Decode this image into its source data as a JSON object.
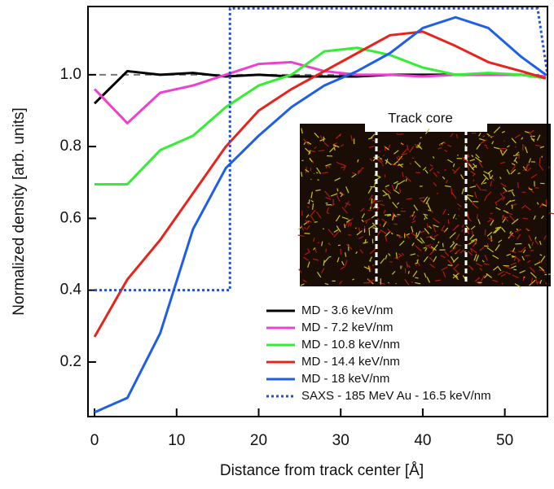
{
  "chart_data": {
    "type": "line",
    "xlabel": "Distance from track center [Å]",
    "ylabel": "Normalized density [arb. units]",
    "annotation": "Track core",
    "x": [
      0,
      4,
      8,
      12,
      16,
      20,
      24,
      28,
      32,
      36,
      40,
      44,
      48,
      52,
      55
    ],
    "series": [
      {
        "name": "MD - 3.6 keV/nm",
        "color": "#000000",
        "style": "solid",
        "values": [
          0.92,
          1.01,
          1.0,
          1.005,
          0.995,
          1.0,
          0.995,
          0.995,
          0.995,
          1.0,
          1.0,
          1.0,
          1.0,
          1.0,
          0.995
        ]
      },
      {
        "name": "MD - 7.2 keV/nm",
        "color": "#ee3fd0",
        "style": "solid",
        "values": [
          0.96,
          0.865,
          0.95,
          0.97,
          1.0,
          1.03,
          1.035,
          1.01,
          1.0,
          1.0,
          0.995,
          1.0,
          1.0,
          1.0,
          0.995
        ]
      },
      {
        "name": "MD - 10.8 keV/nm",
        "color": "#33ee33",
        "style": "solid",
        "values": [
          0.695,
          0.695,
          0.79,
          0.83,
          0.91,
          0.97,
          1.0,
          1.065,
          1.075,
          1.055,
          1.02,
          1.0,
          1.005,
          1.0,
          0.99
        ]
      },
      {
        "name": "MD - 14.4 keV/nm",
        "color": "#e8231c",
        "style": "solid",
        "values": [
          0.27,
          0.43,
          0.54,
          0.67,
          0.8,
          0.9,
          0.96,
          1.01,
          1.06,
          1.11,
          1.12,
          1.08,
          1.035,
          1.01,
          0.99
        ]
      },
      {
        "name": "MD - 18 keV/nm",
        "color": "#1f5ee6",
        "style": "solid",
        "values": [
          0.06,
          0.1,
          0.28,
          0.57,
          0.74,
          0.83,
          0.91,
          0.97,
          1.01,
          1.06,
          1.13,
          1.16,
          1.13,
          1.05,
          1.0
        ]
      },
      {
        "name": "SAXS - 185 MeV Au - 16.5 keV/nm",
        "color": "#1f4fe0",
        "style": "dotted",
        "x": [
          0,
          16.5,
          16.5,
          54,
          55.2
        ],
        "values": [
          0.4,
          0.4,
          1.185,
          1.185,
          1.0
        ]
      }
    ],
    "reference_line": 1.0,
    "xlim": [
      -0.8,
      55.2
    ],
    "ylim": [
      0.048,
      1.19
    ],
    "xticks": [
      0,
      10,
      20,
      30,
      40,
      50
    ],
    "yticks": [
      0.2,
      0.4,
      0.6,
      0.8,
      {
        "value": 1.0,
        "label": "1.0"
      }
    ],
    "legend": "lower right"
  }
}
